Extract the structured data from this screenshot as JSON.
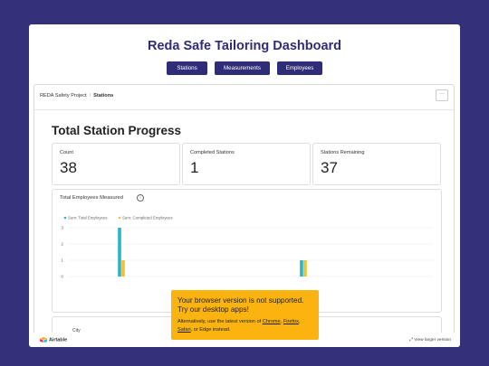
{
  "header": {
    "title": "Reda Safe Tailoring Dashboard",
    "nav": [
      {
        "label": "Stations"
      },
      {
        "label": "Measurements"
      },
      {
        "label": "Employees"
      }
    ]
  },
  "embed": {
    "breadcrumb": {
      "project": "REDA Safety Project",
      "separator": "/",
      "current": "Stations"
    },
    "more_label": "···",
    "section_title": "Total Station Progress",
    "stats": [
      {
        "label": "Count",
        "value": "38"
      },
      {
        "label": "Completed Stations",
        "value": "1"
      },
      {
        "label": "Stations Remaining",
        "value": "37"
      }
    ],
    "chart_title": "Total Employees Measured",
    "info_glyph": "i",
    "city_label": "City"
  },
  "chart_data": {
    "type": "bar",
    "title": "Total Employees Measured",
    "series": [
      {
        "name": "Sum: Total Employees",
        "color": "#2bb5c7",
        "values": [
          0,
          0,
          0,
          0,
          0,
          3,
          0,
          0,
          0,
          0,
          0,
          0,
          0,
          0,
          0,
          0,
          0,
          0,
          0,
          0,
          0,
          0,
          0,
          0,
          1,
          0,
          0,
          0,
          0,
          0,
          0,
          0,
          0,
          0,
          0,
          0,
          0,
          0
        ]
      },
      {
        "name": "Sum: Completed Employees",
        "color": "#f2c037",
        "values": [
          0,
          0,
          0,
          0,
          0,
          1,
          0,
          0,
          0,
          0,
          0,
          0,
          0,
          0,
          0,
          0,
          0,
          0,
          0,
          0,
          0,
          0,
          0,
          0,
          1,
          0,
          0,
          0,
          0,
          0,
          0,
          0,
          0,
          0,
          0,
          0,
          0,
          0
        ]
      }
    ],
    "categories_count": 38,
    "ylim": [
      0,
      3
    ],
    "yticks": [
      "0",
      "1",
      "2",
      "3"
    ],
    "grid": true,
    "legend": "top-left"
  },
  "footer": {
    "brand": "Airtable",
    "view_larger": "View larger version"
  },
  "warning": {
    "title": "Your browser version is not supported. Try our desktop apps!",
    "line_prefix": "Alternatively, use the latest version of",
    "chrome": "Chrome",
    "firefox": "Firefox",
    "safari": "Safari",
    "edge_suffix": "or Edge instead."
  },
  "colors": {
    "background": "#34307a",
    "brand": "#2f2c78",
    "warning": "#fbb40f"
  }
}
